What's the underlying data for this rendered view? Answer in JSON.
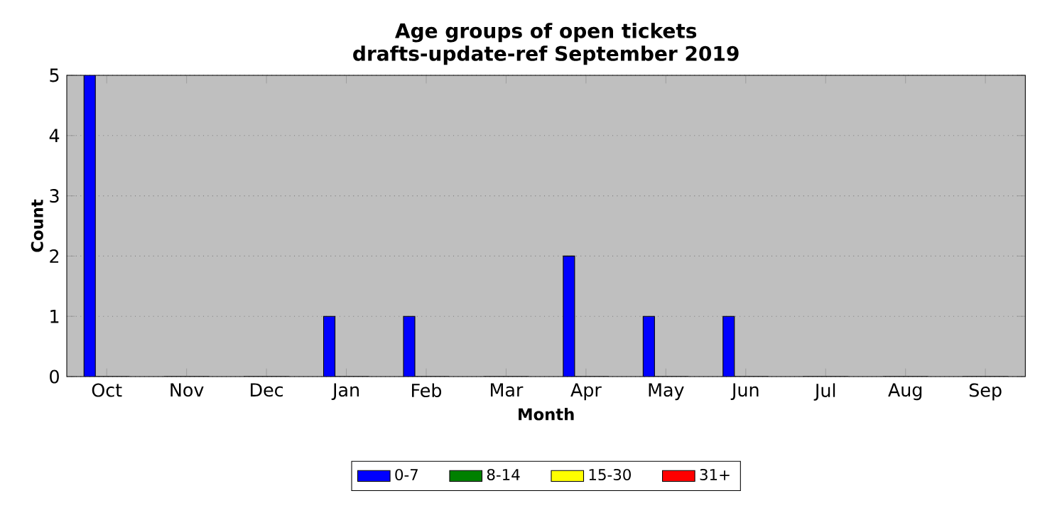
{
  "chart_data": {
    "type": "bar",
    "title": "Age groups of open tickets",
    "subtitle": "drafts-update-ref September 2019",
    "xlabel": "Month",
    "ylabel": "Count",
    "categories": [
      "Oct",
      "Nov",
      "Dec",
      "Jan",
      "Feb",
      "Mar",
      "Apr",
      "May",
      "Jun",
      "Jul",
      "Aug",
      "Sep"
    ],
    "series": [
      {
        "name": "0-7",
        "color": "#0000ff",
        "values": [
          5,
          0,
          0,
          1,
          1,
          0,
          2,
          1,
          1,
          0,
          0,
          0
        ]
      },
      {
        "name": "8-14",
        "color": "#008000",
        "values": [
          0,
          0,
          0,
          0,
          0,
          0,
          0,
          0,
          0,
          0,
          0,
          0
        ]
      },
      {
        "name": "15-30",
        "color": "#ffff00",
        "values": [
          0,
          0,
          0,
          0,
          0,
          0,
          0,
          0,
          0,
          0,
          0,
          0
        ]
      },
      {
        "name": "31+",
        "color": "#ff0000",
        "values": [
          0,
          0,
          0,
          0,
          0,
          0,
          0,
          0,
          0,
          0,
          0,
          0
        ]
      }
    ],
    "ylim": [
      0,
      5
    ],
    "yticks": [
      0,
      1,
      2,
      3,
      4,
      5
    ],
    "grid": "y",
    "legend": "bottom"
  }
}
